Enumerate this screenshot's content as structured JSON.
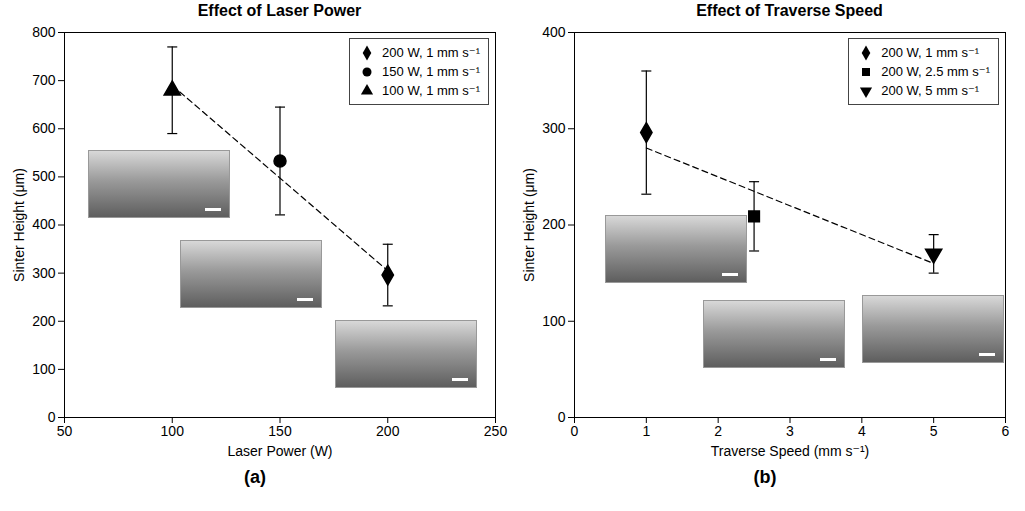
{
  "chart_data": [
    {
      "type": "scatter",
      "panel": "(a)",
      "title": "Effect of Laser Power",
      "x_label": "Laser Power (W)",
      "y_label": "Sinter Height (μm)",
      "xlim": [
        50,
        250
      ],
      "xticks": [
        50,
        100,
        150,
        200,
        250
      ],
      "ylim": [
        0,
        800
      ],
      "yticks": [
        0,
        100,
        200,
        300,
        400,
        500,
        600,
        700,
        800
      ],
      "legend": "top-right",
      "series": [
        {
          "name": "200 W, 1 mm s⁻¹",
          "color": "#000000",
          "marker": "diamond",
          "x": [
            200
          ],
          "values": [
            296
          ],
          "error": [
            64
          ]
        },
        {
          "name": "150 W, 1 mm s⁻¹",
          "color": "#000000",
          "marker": "circle",
          "x": [
            150
          ],
          "values": [
            533
          ],
          "error": [
            112
          ]
        },
        {
          "name": "100 W, 1 mm s⁻¹",
          "color": "#000000",
          "marker": "triangle",
          "x": [
            100
          ],
          "values": [
            680
          ],
          "error": [
            90
          ]
        }
      ],
      "trend_line": {
        "x": [
          100,
          200
        ],
        "values": [
          690,
          305
        ],
        "line_style": "dashed",
        "color": "#000000"
      }
    },
    {
      "type": "scatter",
      "panel": "(b)",
      "title": "Effect of Traverse Speed",
      "x_label": "Traverse Speed (mm s⁻¹)",
      "y_label": "Sinter Height (μm)",
      "xlim": [
        0,
        6
      ],
      "xticks": [
        0,
        1,
        2,
        3,
        4,
        5,
        6
      ],
      "ylim": [
        0,
        400
      ],
      "yticks": [
        0,
        100,
        200,
        300,
        400
      ],
      "legend": "top-right",
      "series": [
        {
          "name": "200 W, 1 mm s⁻¹",
          "color": "#000000",
          "marker": "diamond",
          "x": [
            1
          ],
          "values": [
            296
          ],
          "error": [
            64
          ]
        },
        {
          "name": "200 W, 2.5 mm s⁻¹",
          "color": "#000000",
          "marker": "square",
          "x": [
            2.5
          ],
          "values": [
            209
          ],
          "error": [
            36
          ]
        },
        {
          "name": "200 W, 5 mm s⁻¹",
          "color": "#000000",
          "marker": "triangle-down",
          "x": [
            5
          ],
          "values": [
            170
          ],
          "error": [
            20
          ]
        }
      ],
      "trend_line": {
        "x": [
          1,
          5
        ],
        "values": [
          280,
          160
        ],
        "line_style": "dashed",
        "color": "#000000"
      }
    }
  ]
}
